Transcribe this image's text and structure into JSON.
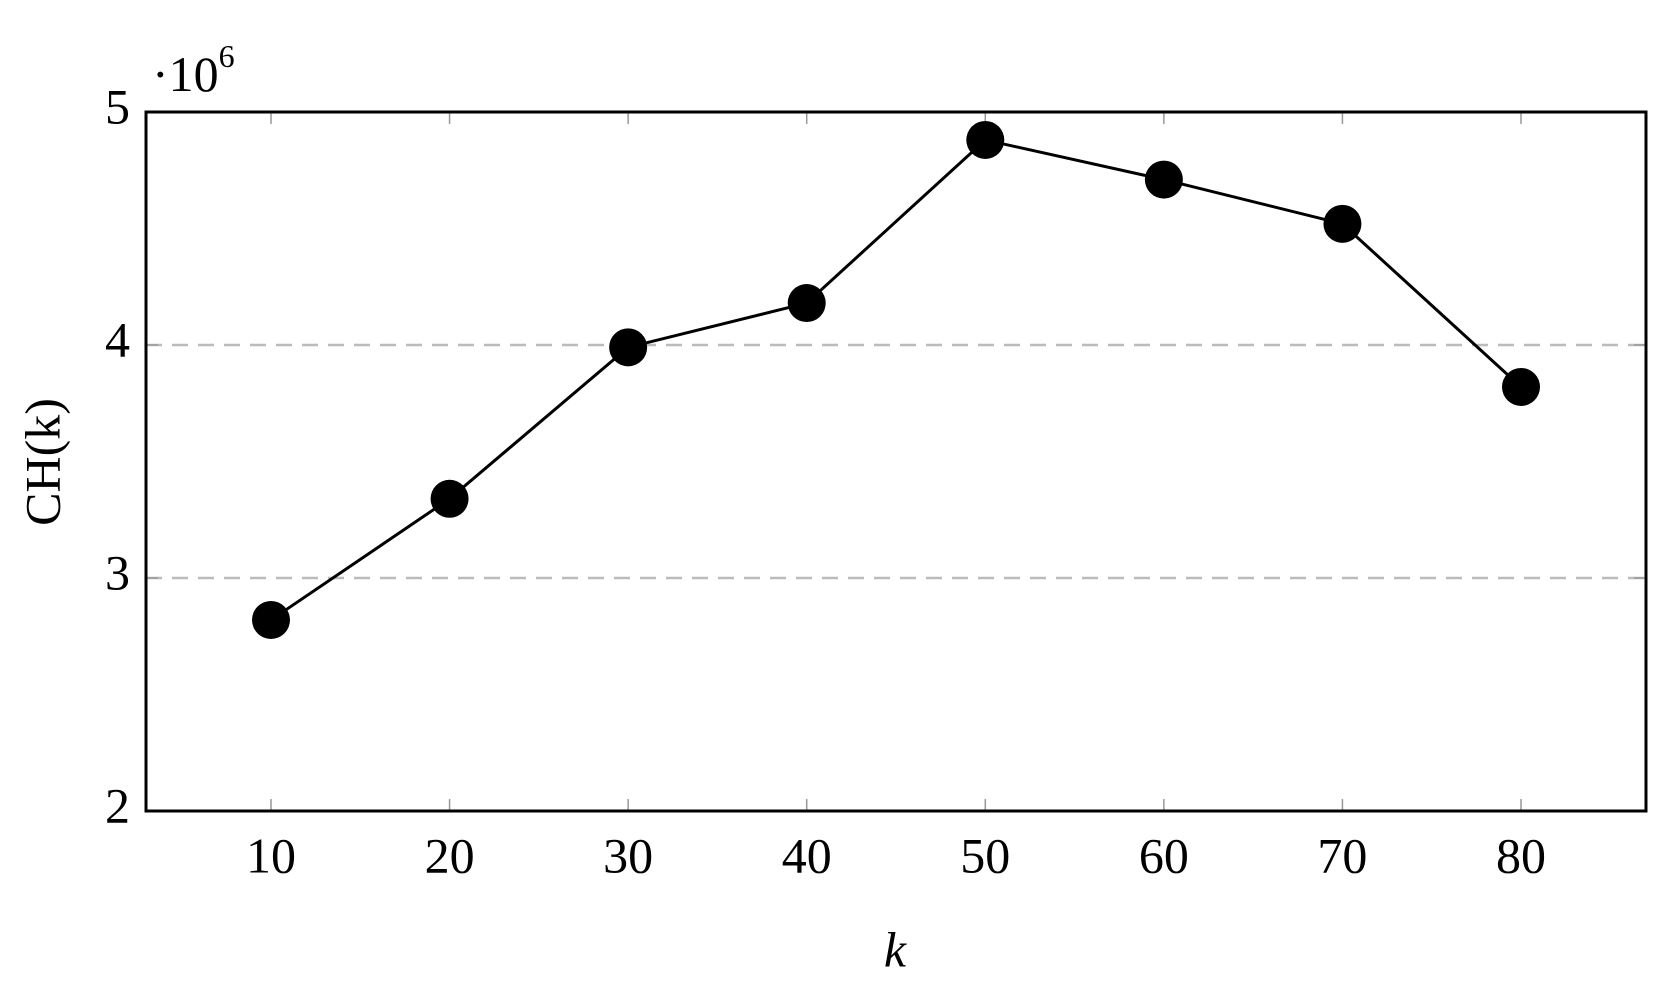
{
  "chart_data": {
    "type": "line",
    "x_label": "k",
    "y_label": "CH(k)",
    "y_multiplier": {
      "base": "·10",
      "exponent": "6"
    },
    "x": [
      10,
      20,
      30,
      40,
      50,
      60,
      70,
      80
    ],
    "series": [
      {
        "color": "#000000",
        "values": [
          2.82,
          3.34,
          3.99,
          4.18,
          4.88,
          4.71,
          4.52,
          3.82
        ]
      }
    ],
    "xlim": [
      3,
      87
    ],
    "xticks": [
      10,
      20,
      30,
      40,
      50,
      60,
      70,
      80
    ],
    "ylim": [
      2,
      5
    ],
    "yticks": [
      2,
      3,
      4,
      5
    ],
    "grid": true
  }
}
